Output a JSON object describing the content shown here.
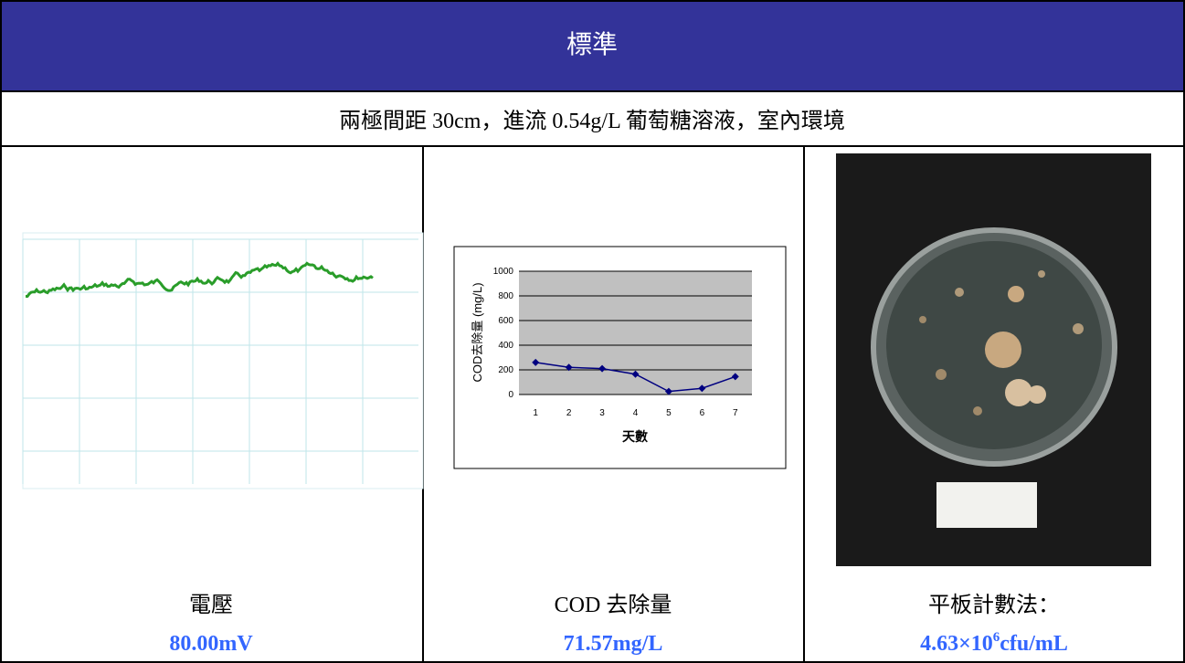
{
  "header": {
    "title": "標準"
  },
  "conditions": "兩極間距 30cm，進流 0.54g/L 葡萄糖溶液，室內環境",
  "cells": [
    {
      "label": "電壓",
      "value": "80.00mV"
    },
    {
      "label": "COD 去除量",
      "value": "71.57mg/L",
      "chart": {
        "type": "line",
        "ylabel": "COD去除量 (mg/L)",
        "xlabel": "天數",
        "categories": [
          1,
          2,
          3,
          4,
          5,
          6,
          7
        ],
        "values": [
          260,
          220,
          210,
          165,
          25,
          50,
          145
        ],
        "color": "#000080",
        "ylim": [
          0,
          1000
        ],
        "yticks": [
          0,
          200,
          400,
          600,
          800,
          1000
        ],
        "grid": true
      }
    },
    {
      "label": "平板計數法：",
      "value": {
        "base": "4.63×10",
        "sup": "6",
        "unit": "cfu/mL"
      }
    }
  ]
}
